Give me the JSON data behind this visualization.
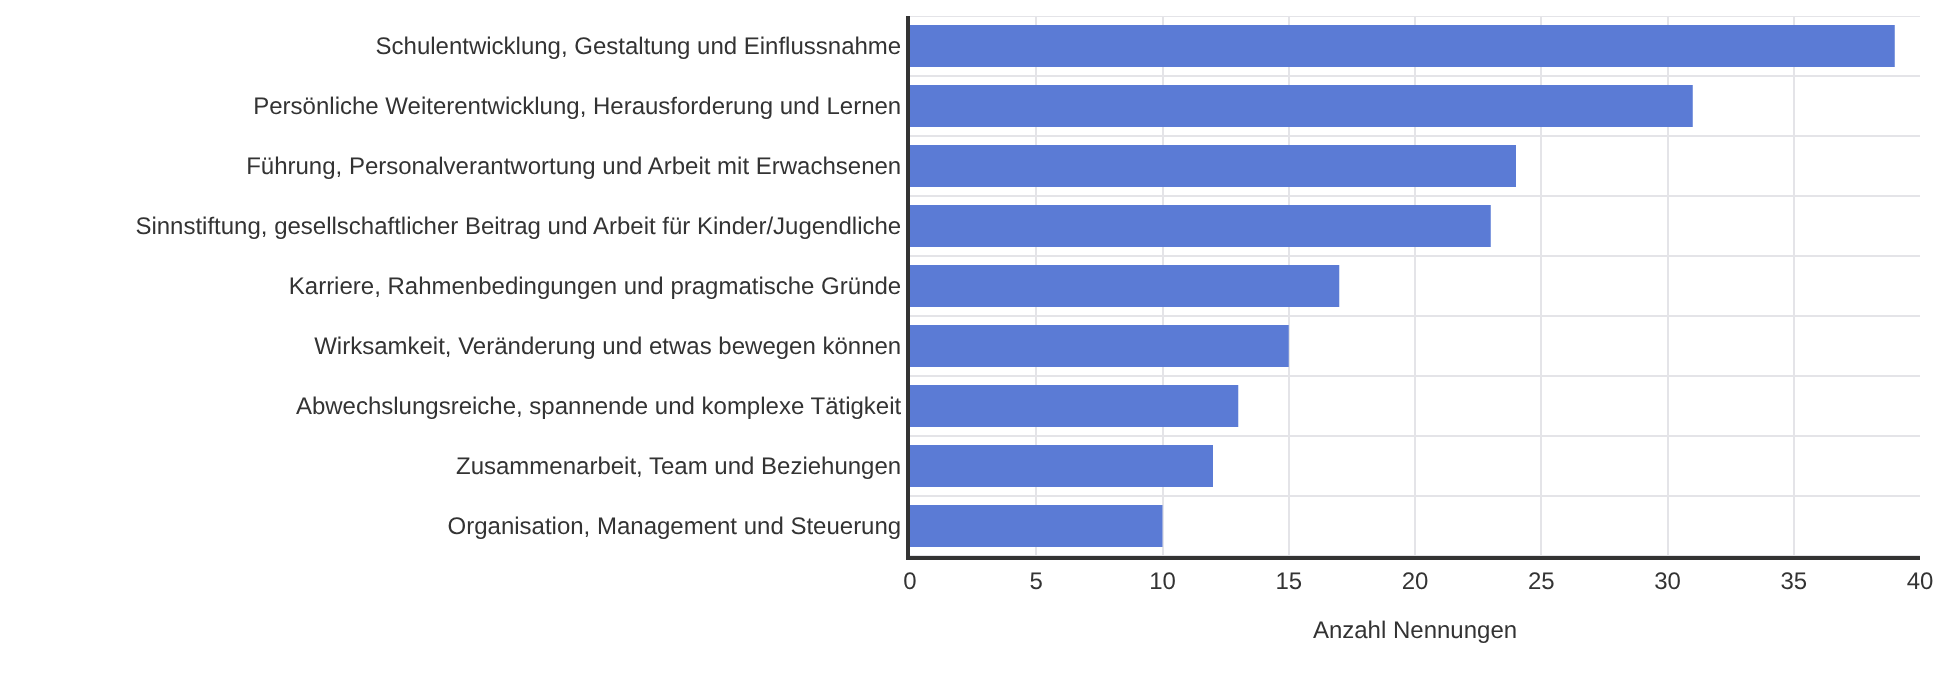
{
  "chart_data": {
    "type": "bar",
    "orientation": "horizontal",
    "xlabel": "Anzahl Nennungen",
    "categories": [
      "Schulentwicklung, Gestaltung und Einflussnahme",
      "Persönliche Weiterentwicklung, Herausforderung und Lernen",
      "Führung, Personalverantwortung und Arbeit mit Erwachsenen",
      "Sinnstiftung, gesellschaftlicher Beitrag und Arbeit für Kinder/Jugendliche",
      "Karriere, Rahmenbedingungen und pragmatische Gründe",
      "Wirksamkeit, Veränderung und etwas bewegen können",
      "Abwechslungsreiche, spannende und komplexe Tätigkeit",
      "Zusammenarbeit, Team und Beziehungen",
      "Organisation, Management und Steuerung"
    ],
    "values": [
      39,
      31,
      24,
      23,
      17,
      15,
      13,
      12,
      10
    ],
    "color": "#5b7bd5",
    "xlim": [
      0,
      40
    ],
    "xticks": [
      0,
      5,
      10,
      15,
      20,
      25,
      30,
      35,
      40
    ],
    "grid": true
  }
}
